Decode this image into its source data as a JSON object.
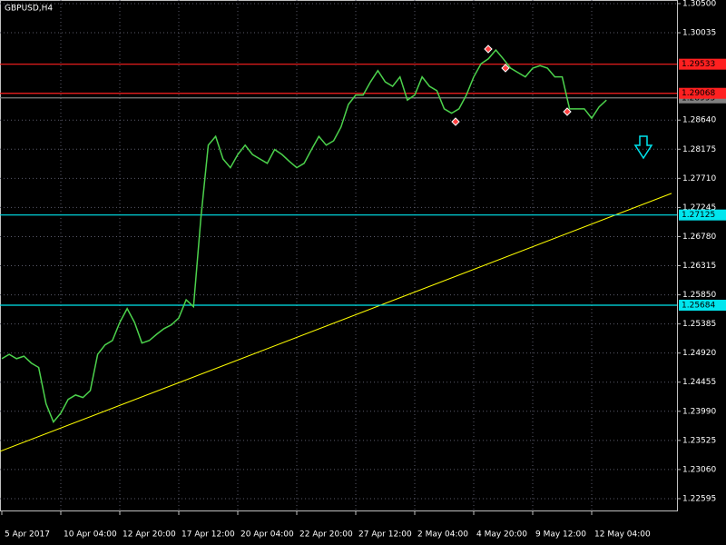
{
  "chart_data": {
    "type": "line",
    "title": "GBPUSD,H4",
    "categories": [
      "5 Apr 2017",
      null,
      null,
      null,
      null,
      null,
      null,
      null,
      "10 Apr 04:00",
      null,
      null,
      null,
      null,
      null,
      null,
      null,
      "12 Apr 20:00",
      null,
      null,
      null,
      null,
      null,
      null,
      null,
      "17 Apr 12:00",
      null,
      null,
      null,
      null,
      null,
      null,
      null,
      "20 Apr 04:00",
      null,
      null,
      null,
      null,
      null,
      null,
      null,
      "22 Apr 20:00",
      null,
      null,
      null,
      null,
      null,
      null,
      null,
      "27 Apr 12:00",
      null,
      null,
      null,
      null,
      null,
      null,
      null,
      "2 May 04:00",
      null,
      null,
      null,
      null,
      null,
      null,
      null,
      "4 May 20:00",
      null,
      null,
      null,
      null,
      null,
      null,
      null,
      "9 May 12:00",
      null,
      null,
      null,
      null,
      null,
      null,
      null,
      "12 May 04:00",
      null,
      null
    ],
    "series": [
      {
        "name": "GBPUSD",
        "color": "#4cd24c",
        "values": [
          1.2483,
          1.249,
          1.2483,
          1.2487,
          1.2476,
          1.2469,
          1.2411,
          1.2382,
          1.2396,
          1.2418,
          1.2425,
          1.2421,
          1.2432,
          1.249,
          1.2505,
          1.2512,
          1.2541,
          1.2563,
          1.2541,
          1.2508,
          1.2512,
          1.2522,
          1.2531,
          1.2537,
          1.2548,
          1.2577,
          1.2566,
          1.2708,
          1.2824,
          1.2838,
          1.2802,
          1.2788,
          1.2809,
          1.2824,
          1.2809,
          1.2802,
          1.2795,
          1.2817,
          1.2809,
          1.2798,
          1.2788,
          1.2795,
          1.2817,
          1.2838,
          1.2824,
          1.2831,
          1.2853,
          1.2889,
          1.2904,
          1.2904,
          1.2925,
          1.2943,
          1.2925,
          1.2918,
          1.2933,
          1.2896,
          1.2904,
          1.2933,
          1.2918,
          1.2911,
          1.2882,
          1.2875,
          1.2882,
          1.2904,
          1.2933,
          1.2954,
          1.2962,
          1.2976,
          1.2962,
          1.2947,
          1.294,
          1.2933,
          1.2947,
          1.2951,
          1.2947,
          1.2933,
          1.2933,
          1.2882,
          1.2882,
          1.2882,
          1.2867,
          1.2885,
          1.2896
        ]
      }
    ],
    "ylim": [
      1.22406,
      1.30558
    ],
    "yticks": [
      {
        "value": 1.305,
        "label": "1.30500"
      },
      1.30035,
      {
        "value": 1.2864,
        "label": "1.28640"
      },
      1.28175,
      {
        "value": 1.2771,
        "label": "1.27710"
      },
      1.27245,
      {
        "value": 1.2678,
        "label": "1.26780"
      },
      1.26315,
      {
        "value": 1.2585,
        "label": "1.25850"
      },
      1.25385,
      {
        "value": 1.2492,
        "label": "1.24920"
      },
      1.24455,
      {
        "value": 1.2399,
        "label": "1.23990"
      },
      1.23525,
      {
        "value": 1.2306,
        "label": "1.23060"
      },
      1.22595
    ],
    "grid": true,
    "hlines": [
      {
        "value": 1.29533,
        "color": "#ff2020"
      },
      {
        "value": 1.28995,
        "color": "#808080"
      },
      {
        "value": 1.29068,
        "color": "#ff2020"
      },
      {
        "value": 1.27125,
        "color": "#00e5ee"
      },
      {
        "value": 1.25684,
        "color": "#00e5ee"
      }
    ],
    "trendline": {
      "values": [
        1.2335,
        1.2747
      ],
      "color": "#ffff00"
    }
  }
}
